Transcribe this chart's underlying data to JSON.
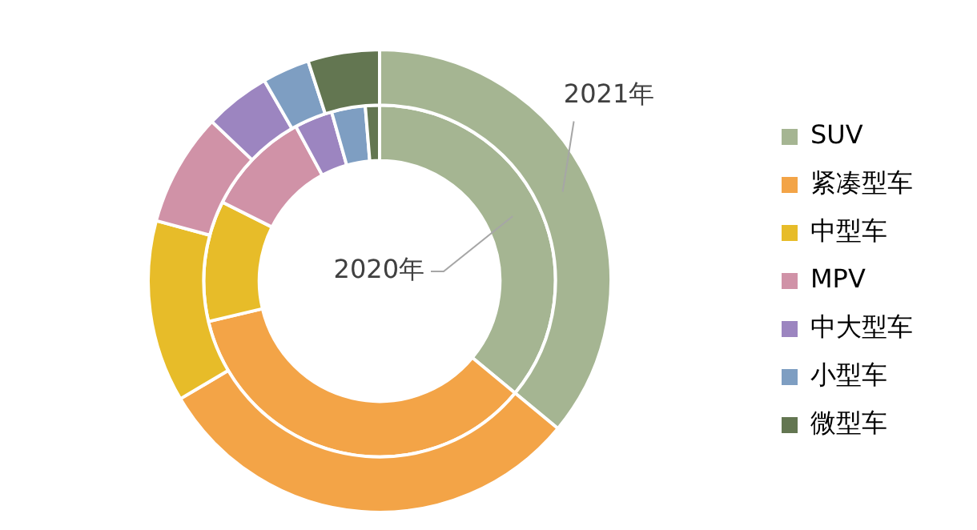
{
  "chart_data": {
    "type": "donut",
    "categories": [
      "SUV",
      "紧凑型车",
      "中型车",
      "MPV",
      "中大型车",
      "小型车",
      "微型车"
    ],
    "colors": [
      "#a5b592",
      "#f3a447",
      "#e7bc29",
      "#d092a7",
      "#9c85c0",
      "#7e9ec2",
      "#637651"
    ],
    "series": [
      {
        "name": "2021年",
        "values": [
          36,
          30.5,
          12.7,
          7.9,
          4.6,
          3.3,
          5
        ]
      },
      {
        "name": "2020年",
        "values": [
          36,
          35.3,
          11.1,
          9.7,
          3.5,
          3.1,
          1.3
        ]
      }
    ],
    "legend": "right"
  }
}
